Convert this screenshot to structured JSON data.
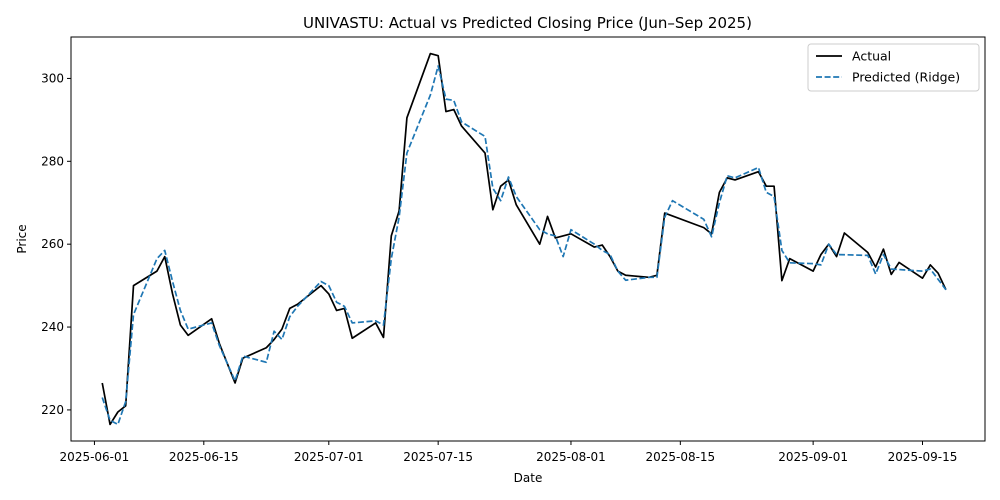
{
  "chart_data": {
    "type": "line",
    "title": "UNIVASTU: Actual vs Predicted Closing Price (Jun–Sep 2025)",
    "xlabel": "Date",
    "ylabel": "Price",
    "xlim": [
      "2025-05-29",
      "2025-09-23"
    ],
    "ylim": [
      212.5,
      310
    ],
    "x_ticks": [
      "2025-06-01",
      "2025-06-15",
      "2025-07-01",
      "2025-07-15",
      "2025-08-01",
      "2025-08-15",
      "2025-09-01",
      "2025-09-15"
    ],
    "y_ticks": [
      220,
      240,
      260,
      280,
      300
    ],
    "grid": false,
    "legend": "top-right",
    "series": [
      {
        "name": "Actual",
        "color": "#000000",
        "style": "solid",
        "points": [
          [
            "2025-06-02",
            226.5
          ],
          [
            "2025-06-03",
            216.5
          ],
          [
            "2025-06-04",
            219.5
          ],
          [
            "2025-06-05",
            221.0
          ],
          [
            "2025-06-06",
            250.0
          ],
          [
            "2025-06-09",
            253.5
          ],
          [
            "2025-06-10",
            257.0
          ],
          [
            "2025-06-11",
            248.0
          ],
          [
            "2025-06-12",
            240.5
          ],
          [
            "2025-06-13",
            238.0
          ],
          [
            "2025-06-16",
            242.0
          ],
          [
            "2025-06-17",
            236.0
          ],
          [
            "2025-06-19",
            226.5
          ],
          [
            "2025-06-20",
            232.5
          ],
          [
            "2025-06-23",
            235.0
          ],
          [
            "2025-06-24",
            237.0
          ],
          [
            "2025-06-25",
            239.5
          ],
          [
            "2025-06-26",
            244.5
          ],
          [
            "2025-06-27",
            245.5
          ],
          [
            "2025-06-30",
            250.0
          ],
          [
            "2025-07-01",
            248.0
          ],
          [
            "2025-07-02",
            244.0
          ],
          [
            "2025-07-03",
            244.5
          ],
          [
            "2025-07-04",
            237.3
          ],
          [
            "2025-07-07",
            241.0
          ],
          [
            "2025-07-08",
            237.5
          ],
          [
            "2025-07-09",
            262.0
          ],
          [
            "2025-07-10",
            268.0
          ],
          [
            "2025-07-11",
            290.5
          ],
          [
            "2025-07-14",
            306.0
          ],
          [
            "2025-07-15",
            305.5
          ],
          [
            "2025-07-16",
            292.0
          ],
          [
            "2025-07-17",
            292.5
          ],
          [
            "2025-07-18",
            288.5
          ],
          [
            "2025-07-21",
            282.0
          ],
          [
            "2025-07-22",
            268.3
          ],
          [
            "2025-07-23",
            274.0
          ],
          [
            "2025-07-24",
            275.5
          ],
          [
            "2025-07-25",
            269.5
          ],
          [
            "2025-07-28",
            260.0
          ],
          [
            "2025-07-29",
            266.7
          ],
          [
            "2025-07-30",
            261.5
          ],
          [
            "2025-08-01",
            262.5
          ],
          [
            "2025-08-04",
            259.3
          ],
          [
            "2025-08-05",
            259.8
          ],
          [
            "2025-08-06",
            257.0
          ],
          [
            "2025-08-07",
            253.5
          ],
          [
            "2025-08-08",
            252.5
          ],
          [
            "2025-08-11",
            252.0
          ],
          [
            "2025-08-12",
            252.5
          ],
          [
            "2025-08-13",
            267.5
          ],
          [
            "2025-08-18",
            264.0
          ],
          [
            "2025-08-19",
            262.5
          ],
          [
            "2025-08-20",
            272.5
          ],
          [
            "2025-08-21",
            276.0
          ],
          [
            "2025-08-22",
            275.5
          ],
          [
            "2025-08-25",
            277.5
          ],
          [
            "2025-08-26",
            274.0
          ],
          [
            "2025-08-27",
            274.0
          ],
          [
            "2025-08-28",
            251.2
          ],
          [
            "2025-08-29",
            256.5
          ],
          [
            "2025-09-01",
            253.5
          ],
          [
            "2025-09-02",
            257.5
          ],
          [
            "2025-09-03",
            260.0
          ],
          [
            "2025-09-04",
            257.0
          ],
          [
            "2025-09-05",
            262.7
          ],
          [
            "2025-09-08",
            258.0
          ],
          [
            "2025-09-09",
            254.5
          ],
          [
            "2025-09-10",
            258.8
          ],
          [
            "2025-09-11",
            252.7
          ],
          [
            "2025-09-12",
            255.6
          ],
          [
            "2025-09-15",
            251.8
          ],
          [
            "2025-09-16",
            255.0
          ],
          [
            "2025-09-17",
            253.0
          ],
          [
            "2025-09-18",
            249.0
          ]
        ]
      },
      {
        "name": "Predicted (Ridge)",
        "color": "#1f77b4",
        "style": "dashed",
        "points": [
          [
            "2025-06-02",
            223.0
          ],
          [
            "2025-06-03",
            217.5
          ],
          [
            "2025-06-04",
            216.5
          ],
          [
            "2025-06-05",
            222.0
          ],
          [
            "2025-06-06",
            243.0
          ],
          [
            "2025-06-09",
            256.5
          ],
          [
            "2025-06-10",
            258.5
          ],
          [
            "2025-06-11",
            251.0
          ],
          [
            "2025-06-12",
            244.0
          ],
          [
            "2025-06-13",
            239.5
          ],
          [
            "2025-06-16",
            241.0
          ],
          [
            "2025-06-17",
            235.5
          ],
          [
            "2025-06-19",
            227.0
          ],
          [
            "2025-06-20",
            233.0
          ],
          [
            "2025-06-23",
            231.5
          ],
          [
            "2025-06-24",
            239.0
          ],
          [
            "2025-06-25",
            237.0
          ],
          [
            "2025-06-26",
            242.5
          ],
          [
            "2025-06-27",
            245.0
          ],
          [
            "2025-06-30",
            251.0
          ],
          [
            "2025-07-01",
            250.0
          ],
          [
            "2025-07-02",
            246.0
          ],
          [
            "2025-07-03",
            245.0
          ],
          [
            "2025-07-04",
            241.0
          ],
          [
            "2025-07-07",
            241.5
          ],
          [
            "2025-07-08",
            240.5
          ],
          [
            "2025-07-09",
            256.5
          ],
          [
            "2025-07-10",
            266.5
          ],
          [
            "2025-07-11",
            282.0
          ],
          [
            "2025-07-14",
            296.0
          ],
          [
            "2025-07-15",
            303.0
          ],
          [
            "2025-07-16",
            295.0
          ],
          [
            "2025-07-17",
            294.7
          ],
          [
            "2025-07-18",
            289.5
          ],
          [
            "2025-07-21",
            286.0
          ],
          [
            "2025-07-22",
            273.5
          ],
          [
            "2025-07-23",
            270.5
          ],
          [
            "2025-07-24",
            276.2
          ],
          [
            "2025-07-25",
            271.5
          ],
          [
            "2025-07-28",
            263.5
          ],
          [
            "2025-07-29",
            262.5
          ],
          [
            "2025-07-30",
            262.0
          ],
          [
            "2025-07-31",
            257.0
          ],
          [
            "2025-08-01",
            263.5
          ],
          [
            "2025-08-04",
            260.0
          ],
          [
            "2025-08-05",
            258.5
          ],
          [
            "2025-08-06",
            257.5
          ],
          [
            "2025-08-07",
            253.5
          ],
          [
            "2025-08-08",
            251.3
          ],
          [
            "2025-08-11",
            252.0
          ],
          [
            "2025-08-12",
            252.0
          ],
          [
            "2025-08-13",
            266.5
          ],
          [
            "2025-08-14",
            270.5
          ],
          [
            "2025-08-18",
            266.0
          ],
          [
            "2025-08-19",
            261.8
          ],
          [
            "2025-08-20",
            270.0
          ],
          [
            "2025-08-21",
            276.5
          ],
          [
            "2025-08-22",
            276.0
          ],
          [
            "2025-08-25",
            278.5
          ],
          [
            "2025-08-26",
            272.5
          ],
          [
            "2025-08-27",
            271.5
          ],
          [
            "2025-08-28",
            258.5
          ],
          [
            "2025-08-29",
            255.5
          ],
          [
            "2025-09-01",
            255.3
          ],
          [
            "2025-09-02",
            255.0
          ],
          [
            "2025-09-03",
            260.0
          ],
          [
            "2025-09-04",
            257.5
          ],
          [
            "2025-09-08",
            257.3
          ],
          [
            "2025-09-09",
            252.8
          ],
          [
            "2025-09-10",
            257.5
          ],
          [
            "2025-09-11",
            254.0
          ],
          [
            "2025-09-15",
            253.5
          ],
          [
            "2025-09-16",
            254.0
          ],
          [
            "2025-09-17",
            251.5
          ],
          [
            "2025-09-18",
            249.0
          ]
        ]
      }
    ]
  }
}
